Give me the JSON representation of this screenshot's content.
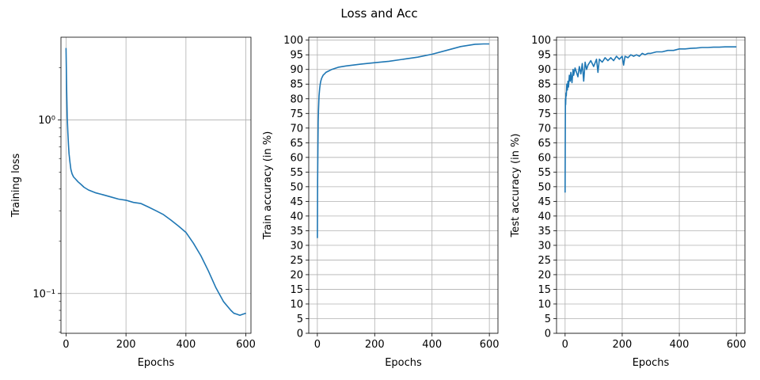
{
  "figure": {
    "suptitle": "Loss and Acc"
  },
  "chart_data": [
    {
      "type": "line",
      "title": "",
      "xlabel": "Epochs",
      "ylabel": "Training loss",
      "yscale": "log",
      "xlim": [
        -17,
        617
      ],
      "ylim": [
        0.059,
        3.0
      ],
      "xticks": [
        0,
        200,
        400,
        600
      ],
      "xtick_labels": [
        "0",
        "200",
        "400",
        "600"
      ],
      "yticks": [
        1,
        0.1
      ],
      "ytick_labels": [
        "10⁰",
        "10⁻¹"
      ],
      "grid": true,
      "color": "#1f77b4",
      "x": [
        0,
        2,
        4,
        6,
        8,
        10,
        13,
        16,
        20,
        25,
        30,
        40,
        50,
        60,
        75,
        100,
        125,
        150,
        175,
        200,
        225,
        250,
        275,
        300,
        325,
        350,
        375,
        400,
        425,
        450,
        475,
        500,
        525,
        550,
        560,
        570,
        580,
        590,
        600
      ],
      "y": [
        2.6,
        1.5,
        1.05,
        0.85,
        0.72,
        0.64,
        0.57,
        0.52,
        0.49,
        0.47,
        0.46,
        0.44,
        0.425,
        0.41,
        0.395,
        0.38,
        0.37,
        0.36,
        0.35,
        0.345,
        0.335,
        0.33,
        0.315,
        0.3,
        0.285,
        0.265,
        0.245,
        0.225,
        0.195,
        0.165,
        0.135,
        0.108,
        0.09,
        0.08,
        0.077,
        0.076,
        0.075,
        0.076,
        0.077
      ]
    },
    {
      "type": "line",
      "title": "",
      "xlabel": "Epochs",
      "ylabel": "Train accuracy (in %)",
      "xlim": [
        -30,
        630
      ],
      "ylim": [
        0,
        101
      ],
      "xticks": [
        0,
        200,
        400,
        600
      ],
      "xtick_labels": [
        "0",
        "200",
        "400",
        "600"
      ],
      "yticks": [
        0,
        5,
        10,
        15,
        20,
        25,
        30,
        35,
        40,
        45,
        50,
        55,
        60,
        65,
        70,
        75,
        80,
        85,
        90,
        95,
        100
      ],
      "ytick_labels": [
        "0",
        "5",
        "10",
        "15",
        "20",
        "25",
        "30",
        "35",
        "40",
        "45",
        "50",
        "55",
        "60",
        "65",
        "70",
        "75",
        "80",
        "85",
        "90",
        "95",
        "100"
      ],
      "grid": true,
      "color": "#1f77b4",
      "x": [
        0,
        1,
        2,
        3,
        4,
        5,
        6,
        8,
        10,
        12,
        15,
        20,
        25,
        30,
        40,
        50,
        75,
        100,
        150,
        200,
        250,
        300,
        350,
        400,
        450,
        500,
        550,
        580,
        600
      ],
      "y": [
        32.5,
        52,
        64,
        72,
        76,
        79,
        81,
        83.5,
        85,
        86,
        87,
        88,
        88.5,
        89,
        89.5,
        90,
        90.8,
        91.2,
        91.8,
        92.3,
        92.8,
        93.5,
        94.2,
        95.2,
        96.5,
        97.8,
        98.6,
        98.7,
        98.7
      ]
    },
    {
      "type": "line",
      "title": "",
      "xlabel": "Epochs",
      "ylabel": "Test accuracy (in %)",
      "xlim": [
        -30,
        630
      ],
      "ylim": [
        0,
        101
      ],
      "xticks": [
        0,
        200,
        400,
        600
      ],
      "xtick_labels": [
        "0",
        "200",
        "400",
        "600"
      ],
      "yticks": [
        0,
        5,
        10,
        15,
        20,
        25,
        30,
        35,
        40,
        45,
        50,
        55,
        60,
        65,
        70,
        75,
        80,
        85,
        90,
        95,
        100
      ],
      "ytick_labels": [
        "0",
        "5",
        "10",
        "15",
        "20",
        "25",
        "30",
        "35",
        "40",
        "45",
        "50",
        "55",
        "60",
        "65",
        "70",
        "75",
        "80",
        "85",
        "90",
        "95",
        "100"
      ],
      "grid": true,
      "color": "#1f77b4",
      "x": [
        0,
        1,
        2,
        3,
        4,
        6,
        8,
        10,
        12,
        15,
        18,
        20,
        24,
        28,
        30,
        35,
        40,
        45,
        50,
        55,
        60,
        65,
        70,
        75,
        80,
        90,
        100,
        110,
        115,
        120,
        130,
        140,
        150,
        160,
        170,
        180,
        190,
        200,
        205,
        210,
        220,
        230,
        240,
        250,
        260,
        270,
        280,
        290,
        300,
        320,
        340,
        360,
        380,
        400,
        420,
        440,
        460,
        480,
        500,
        520,
        540,
        560,
        580,
        600
      ],
      "y": [
        48,
        80,
        78,
        82,
        81,
        85,
        83,
        86,
        84,
        88,
        86,
        89,
        85.5,
        90,
        88,
        90.5,
        89,
        87.5,
        91,
        88.5,
        92,
        86,
        92.5,
        90,
        91.5,
        93,
        91,
        93.5,
        89,
        93.5,
        92.5,
        94,
        93,
        94,
        93,
        94.5,
        93.5,
        94.5,
        91.5,
        94.5,
        94,
        95,
        94.5,
        95,
        94.5,
        95.5,
        95,
        95.5,
        95.5,
        96,
        96,
        96.5,
        96.5,
        97,
        97,
        97.2,
        97.3,
        97.5,
        97.5,
        97.6,
        97.6,
        97.7,
        97.7,
        97.7
      ]
    }
  ]
}
